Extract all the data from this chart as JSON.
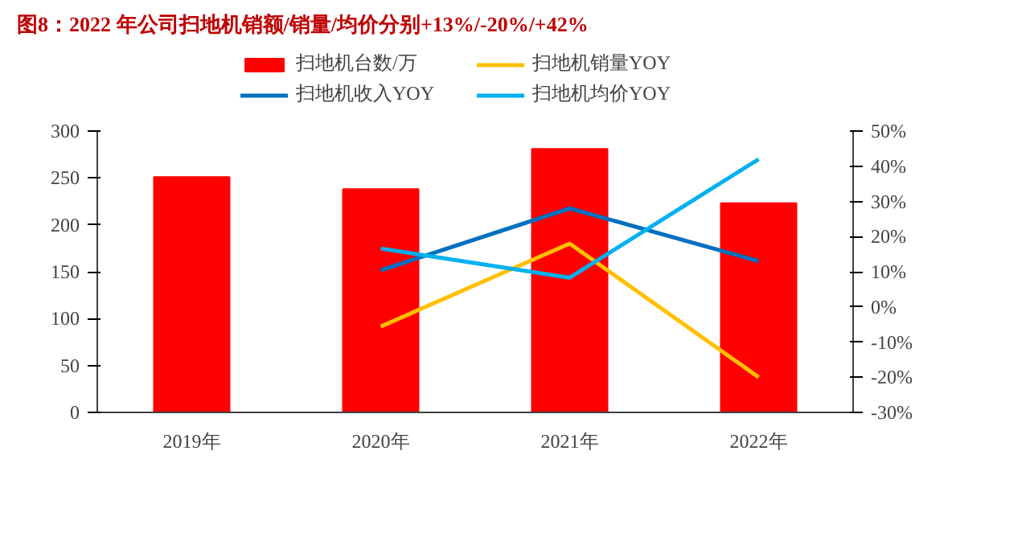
{
  "chart_data": {
    "type": "bar",
    "title": "图8：2022 年公司扫地机销额/销量/均价分别+13%/-20%/+42%",
    "categories": [
      "2019年",
      "2020年",
      "2021年",
      "2022年"
    ],
    "series": [
      {
        "name": "扫地机台数/万",
        "color": "#ff0000",
        "values": [
          251,
          238,
          281,
          223
        ]
      },
      {
        "name": "扫地机收入YOY",
        "type": "line",
        "axis": "y2",
        "color": "#0070c0",
        "values": [
          null,
          10.4,
          28,
          13
        ]
      },
      {
        "name": "扫地机销量YOY",
        "type": "line",
        "axis": "y2",
        "color": "#ffc000",
        "values": [
          null,
          -5.6,
          18,
          -20
        ]
      },
      {
        "name": "扫地机均价YOY",
        "type": "line",
        "axis": "y2",
        "color": "#00b0f0",
        "values": [
          null,
          16.6,
          8.3,
          42
        ]
      }
    ],
    "ylim": [
      0,
      300
    ],
    "yticks": [
      0,
      50,
      100,
      150,
      200,
      250,
      300
    ],
    "y2lim": [
      -30,
      50
    ],
    "y2ticks": [
      {
        "value": -30,
        "label": "-30%"
      },
      {
        "value": -20,
        "label": "-20%"
      },
      {
        "value": -10,
        "label": "-10%"
      },
      {
        "value": 0,
        "label": "0%"
      },
      {
        "value": 10,
        "label": "10%"
      },
      {
        "value": 20,
        "label": "20%"
      },
      {
        "value": 30,
        "label": "30%"
      },
      {
        "value": 40,
        "label": "40%"
      },
      {
        "value": 50,
        "label": "50%"
      }
    ],
    "grid": false,
    "legend": "top",
    "marker": "none",
    "line_style": "solid"
  }
}
